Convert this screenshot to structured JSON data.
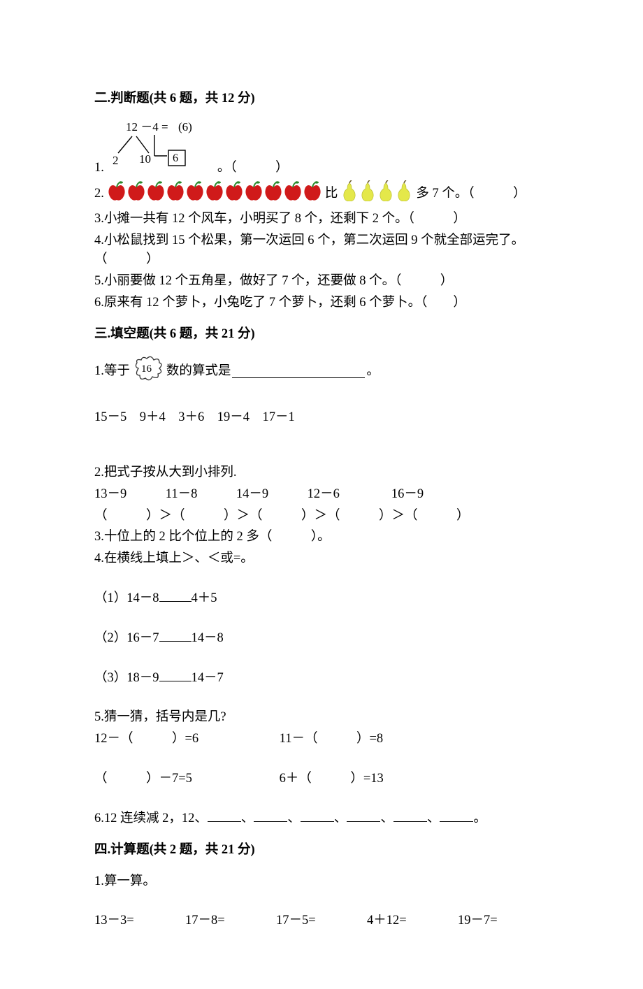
{
  "colors": {
    "text": "#000000",
    "bg": "#ffffff",
    "apple_red": "#d01a1a",
    "apple_leaf": "#2c8a2c",
    "pear_body": "#e4e84a",
    "pear_shade": "#c0c43a",
    "box_stroke": "#000000",
    "cloud_stroke": "#333333"
  },
  "typography": {
    "base_font": "SimSun",
    "base_size_pt": 14,
    "heading_weight": "bold",
    "line_height": 1.45
  },
  "sec2": {
    "heading": "二.判断题(共 6 题，共 12 分)",
    "count": 6,
    "points": 12,
    "q1": {
      "label": "1.",
      "after": "。（　　　）",
      "diagram": {
        "type": "number-bond",
        "top_expr": "12 －4 =",
        "top_result": "(6)",
        "top_value": 6,
        "left_child": "2",
        "right_child": "10",
        "boxed": "6",
        "box_border": "#000000"
      }
    },
    "q2": {
      "label": "2.",
      "apple_count": 11,
      "pear_count": 4,
      "middle": "比",
      "tail": "多 7 个。（　　　）"
    },
    "q3": "3.小摊一共有 12 个风车，小明买了 8 个，还剩下 2 个。（　　　）",
    "q4": "4.小松鼠找到 15 个松果，第一次运回 6 个，第二次运回 9 个就全部运完了。（　　　）",
    "q5": "5.小丽要做 12 个五角星，做好了 7 个，还要做 8 个。（　　　）",
    "q6": "6.原来有 12 个萝卜，小兔吃了 7 个萝卜，还剩 6 个萝卜。（　　）"
  },
  "sec3": {
    "heading": "三.填空题(共 6 题，共 21 分)",
    "count": 6,
    "points": 21,
    "q1": {
      "pre": "1.等于",
      "cloud_number": "16",
      "post_a": "数的算式是",
      "post_b": "。",
      "options": "15－5　9＋4　3＋6　19－4　17－1"
    },
    "q2": {
      "line1": "2.把式子按从大到小排列.",
      "exprs": "13－9　　　11－8　　　14－9　　　12－6　　　　16－9",
      "answer_row": "（　　　）＞（　　　）＞（　　　）＞（　　　）＞（　　　）"
    },
    "q3": "3.十位上的 2 比个位上的 2 多（　　　）。",
    "q4": {
      "title": "4.在横线上填上＞、＜或=。",
      "items": [
        "（1）14－8　　　4＋5",
        "（2）16－7　　　14－8",
        "（3）18－9　　　14－7"
      ]
    },
    "q5": {
      "title": "5.猜一猜，括号内是几?",
      "row1a": "12－（　　　）=6",
      "row1b": "11－（　　　）=8",
      "row2a": "（　　　）－7=5",
      "row2b": "6＋（　　　）=13"
    },
    "q6": {
      "pre": "6.12 连续减 2，12、",
      "blank_count": 6,
      "sep": "、",
      "end": "。"
    }
  },
  "sec4": {
    "heading": "四.计算题(共 2 题，共 21 分)",
    "count": 2,
    "points": 21,
    "q1_title": "1.算一算。",
    "row": [
      "13－3=",
      "17－8=",
      "17－5=",
      "4＋12=",
      "19－7="
    ]
  }
}
